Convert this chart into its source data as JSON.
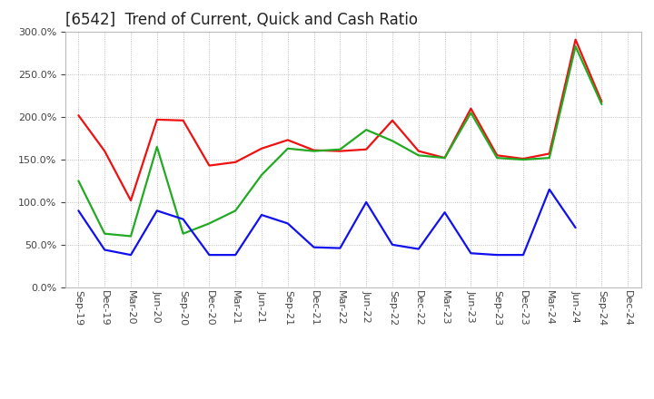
{
  "title": "[6542]  Trend of Current, Quick and Cash Ratio",
  "xlabels": [
    "Sep-19",
    "Dec-19",
    "Mar-20",
    "Jun-20",
    "Sep-20",
    "Dec-20",
    "Mar-21",
    "Jun-21",
    "Sep-21",
    "Dec-21",
    "Mar-22",
    "Jun-22",
    "Sep-22",
    "Dec-22",
    "Mar-23",
    "Jun-23",
    "Sep-23",
    "Dec-23",
    "Mar-24",
    "Jun-24",
    "Sep-24",
    "Dec-24"
  ],
  "current_ratio": [
    202,
    160,
    102,
    197,
    196,
    143,
    147,
    163,
    173,
    161,
    160,
    162,
    196,
    160,
    152,
    210,
    155,
    151,
    157,
    291,
    218,
    null
  ],
  "quick_ratio": [
    125,
    63,
    60,
    165,
    63,
    75,
    90,
    132,
    163,
    160,
    162,
    185,
    172,
    155,
    152,
    205,
    152,
    150,
    152,
    283,
    215,
    null
  ],
  "cash_ratio": [
    90,
    44,
    38,
    90,
    80,
    38,
    38,
    85,
    75,
    47,
    46,
    100,
    50,
    45,
    88,
    40,
    38,
    38,
    115,
    70,
    null,
    null
  ],
  "current_color": "#ee1111",
  "quick_color": "#22aa22",
  "cash_color": "#1111ee",
  "bg_color": "#ffffff",
  "plot_bg_color": "#ffffff",
  "grid_color": "#999999",
  "ylim": [
    0,
    300
  ],
  "yticks": [
    0,
    50,
    100,
    150,
    200,
    250,
    300
  ],
  "title_fontsize": 12,
  "legend_fontsize": 9,
  "tick_fontsize": 8,
  "line_width": 1.6
}
